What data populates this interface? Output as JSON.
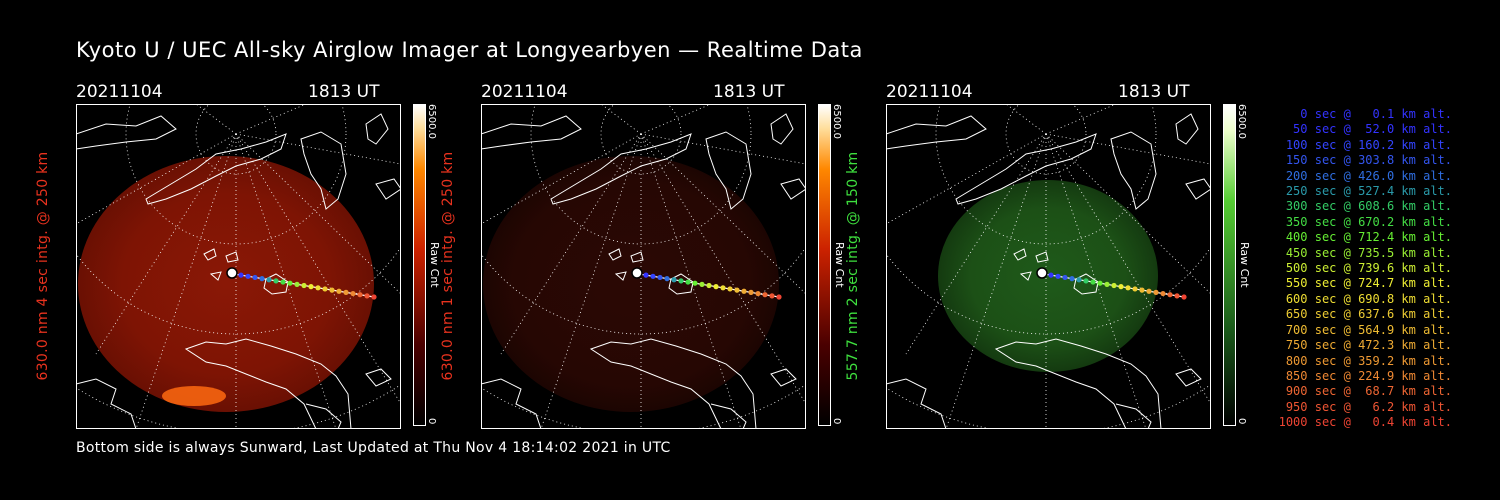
{
  "title": "Kyoto U / UEC All-sky Airglow Imager at Longyearbyen — Realtime Data",
  "footer": "Bottom side is always Sunward, Last Updated at Thu Nov  4 18:14:02 2021 in UTC",
  "colors": {
    "red_label": "#e8321e",
    "green_label": "#3ee03e"
  },
  "panels": [
    {
      "date": "20211104",
      "time": "1813 UT",
      "ylabel": "630.0 nm 4 sec intg. @ 250 km",
      "label_color": "#e8321e",
      "cbar_max": "6500.0",
      "cbar_min": "0",
      "cbar_unit": "Raw Cnt",
      "colormap": "red",
      "brightness": "bright"
    },
    {
      "date": "20211104",
      "time": "1813 UT",
      "ylabel": "630.0 nm 1 sec intg. @ 250 km",
      "label_color": "#e8321e",
      "cbar_max": "6500.0",
      "cbar_min": "0",
      "cbar_unit": "Raw Cnt",
      "colormap": "red",
      "brightness": "dim"
    },
    {
      "date": "20211104",
      "time": "1813 UT",
      "ylabel": "557.7 nm 2 sec intg. @ 150 km",
      "label_color": "#3ee03e",
      "cbar_max": "6500.0",
      "cbar_min": "0",
      "cbar_unit": "Raw Cnt",
      "colormap": "green",
      "brightness": "medium"
    }
  ],
  "legend": [
    {
      "text": "0 sec @   0.1 km alt.",
      "color": "#3333ff"
    },
    {
      "text": "50 sec @  52.0 km alt.",
      "color": "#3333ff"
    },
    {
      "text": "100 sec @ 160.2 km alt.",
      "color": "#3344ff"
    },
    {
      "text": "150 sec @ 303.8 km alt.",
      "color": "#3355ee"
    },
    {
      "text": "200 sec @ 426.0 km alt.",
      "color": "#2f6ee0"
    },
    {
      "text": "250 sec @ 527.4 km alt.",
      "color": "#2a9aaa"
    },
    {
      "text": "300 sec @ 608.6 km alt.",
      "color": "#33cc66"
    },
    {
      "text": "350 sec @ 670.2 km alt.",
      "color": "#44dd44"
    },
    {
      "text": "400 sec @ 712.4 km alt.",
      "color": "#66ee33"
    },
    {
      "text": "450 sec @ 735.5 km alt.",
      "color": "#99ee33"
    },
    {
      "text": "500 sec @ 739.6 km alt.",
      "color": "#ccee33"
    },
    {
      "text": "550 sec @ 724.7 km alt.",
      "color": "#eeee33"
    },
    {
      "text": "600 sec @ 690.8 km alt.",
      "color": "#eedd33"
    },
    {
      "text": "650 sec @ 637.6 km alt.",
      "color": "#eecc33"
    },
    {
      "text": "700 sec @ 564.9 km alt.",
      "color": "#eebb33"
    },
    {
      "text": "750 sec @ 472.3 km alt.",
      "color": "#eeaa33"
    },
    {
      "text": "800 sec @ 359.2 km alt.",
      "color": "#ee9933"
    },
    {
      "text": "850 sec @ 224.9 km alt.",
      "color": "#ee8833"
    },
    {
      "text": "900 sec @  68.7 km alt.",
      "color": "#ee6633"
    },
    {
      "text": "950 sec @   6.2 km alt.",
      "color": "#ee5533"
    },
    {
      "text": "1000 sec @   0.4 km alt.",
      "color": "#ee4433"
    }
  ]
}
